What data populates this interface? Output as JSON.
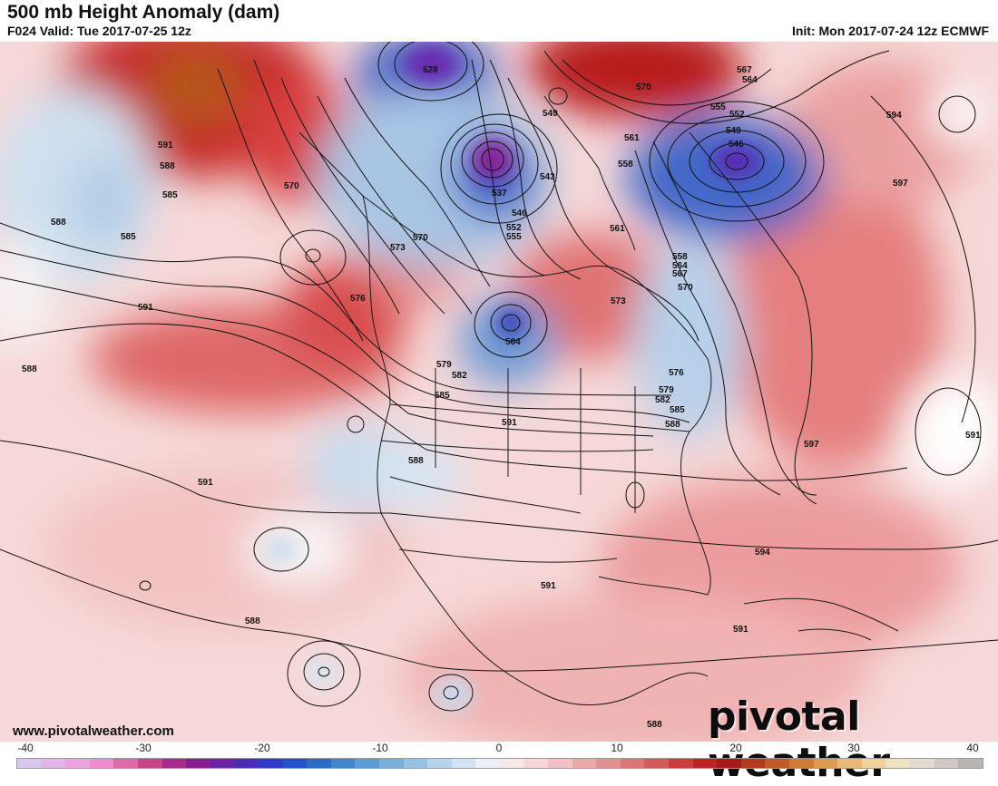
{
  "header": {
    "title": "500 mb Height Anomaly (dam)",
    "valid": "F024 Valid: Tue 2017-07-25 12z",
    "init": "Init: Mon 2017-07-24 12z ECMWF"
  },
  "footer": {
    "site": "www.pivotalweather.com",
    "watermark": "pivotal weather"
  },
  "colorbar": {
    "ticks": [
      "-40",
      "-30",
      "-20",
      "-10",
      "0",
      "10",
      "20",
      "30",
      "40"
    ],
    "colors": [
      "#d8c6ee",
      "#e2b4e8",
      "#eca3df",
      "#f08ccc",
      "#e06aa8",
      "#c8438a",
      "#a82a8a",
      "#8a1d96",
      "#6a22a8",
      "#4a2cb8",
      "#2f3cc4",
      "#2255c8",
      "#2a6dc8",
      "#3f86d0",
      "#5a9ad6",
      "#7aaedd",
      "#98c2e4",
      "#b6d4ec",
      "#d2e4f3",
      "#eaf1f8",
      "#f8e8e8",
      "#f6d6d6",
      "#f2c0c0",
      "#eda8a8",
      "#e68f8f",
      "#de7575",
      "#d45a5a",
      "#c83e3e",
      "#b82626",
      "#a51a1a",
      "#b53a1a",
      "#c45a24",
      "#d27a34",
      "#df9a4e",
      "#eab872",
      "#f0d29a",
      "#eee2c0",
      "#e2dcd0",
      "#cfcac4",
      "#b8b4b0"
    ]
  },
  "contour_labels": [
    "528",
    "591",
    "588",
    "585",
    "570",
    "588",
    "585",
    "591",
    "588",
    "591",
    "588",
    "573",
    "576",
    "570",
    "579",
    "582",
    "585",
    "591",
    "588",
    "591",
    "591",
    "594",
    "597",
    "597",
    "591",
    "594",
    "567",
    "564",
    "570",
    "555",
    "552",
    "549",
    "546",
    "561",
    "558",
    "561",
    "558",
    "564",
    "567",
    "570",
    "549",
    "543",
    "537",
    "546",
    "552",
    "555",
    "564",
    "576",
    "579",
    "582",
    "585",
    "588",
    "573",
    "588"
  ]
}
